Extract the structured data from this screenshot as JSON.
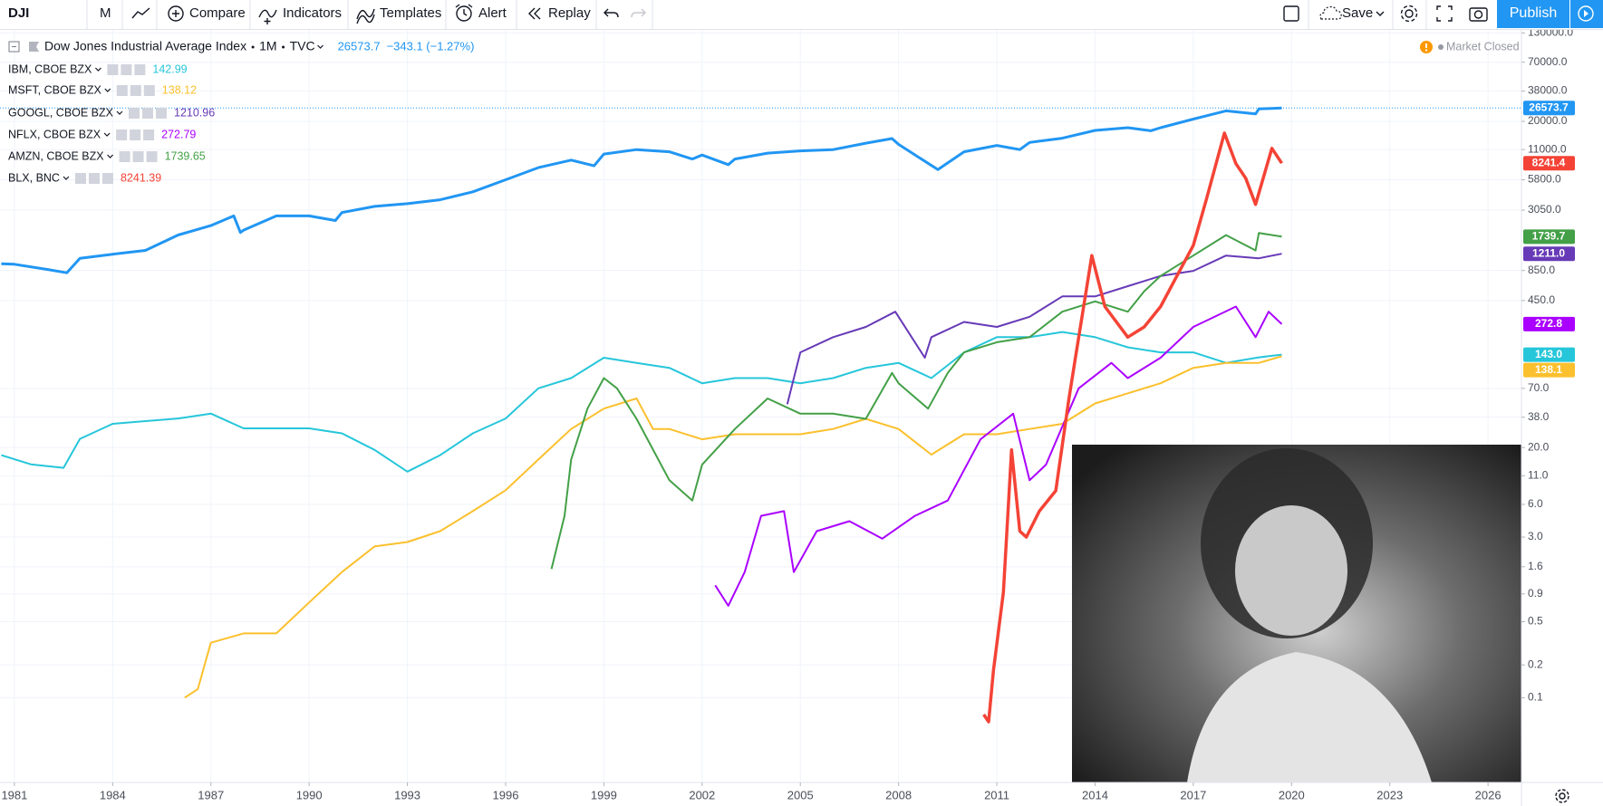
{
  "toolbar": {
    "symbol": "DJI",
    "interval": "M",
    "compare": "Compare",
    "indicators": "Indicators",
    "templates": "Templates",
    "alert": "Alert",
    "replay": "Replay",
    "save": "Save",
    "publish": "Publish"
  },
  "legend": {
    "interval": "1M",
    "source": "TVC",
    "change": "−343.1 (−1.27%)"
  },
  "status": "Market Closed",
  "chart_data": {
    "type": "line",
    "log_scale": true,
    "grid": true,
    "xlim": [
      1980.56,
      2027.02
    ],
    "ylim": [
      0.0166,
      141500
    ],
    "xticks": [
      1981,
      1984,
      1987,
      1990,
      1993,
      1996,
      1999,
      2002,
      2005,
      2008,
      2011,
      2014,
      2017,
      2020,
      2023,
      2026
    ],
    "yticks": [
      {
        "value": 130000,
        "label": "130000.0"
      },
      {
        "value": 70000,
        "label": "70000.0"
      },
      {
        "value": 38000,
        "label": "38000.0"
      },
      {
        "value": 20000,
        "label": "20000.0"
      },
      {
        "value": 11000,
        "label": "11000.0"
      },
      {
        "value": 5800,
        "label": "5800.0"
      },
      {
        "value": 3050,
        "label": "3050.0"
      },
      {
        "value": 850,
        "label": "850.0"
      },
      {
        "value": 450,
        "label": "450.0"
      },
      {
        "value": 70,
        "label": "70.0"
      },
      {
        "value": 38,
        "label": "38.0"
      },
      {
        "value": 20,
        "label": "20.0"
      },
      {
        "value": 11,
        "label": "11.0"
      },
      {
        "value": 6,
        "label": "6.0"
      },
      {
        "value": 3,
        "label": "3.0"
      },
      1.6,
      0.9,
      0.5,
      0.2,
      0.1
    ],
    "series": [
      {
        "name": "Dow Jones Industrial Average Index",
        "color": "#2196f3",
        "width": 3,
        "x": [
          1980.6,
          1981,
          1982,
          1982.6,
          1983,
          1984,
          1985,
          1986,
          1987,
          1987.7,
          1987.9,
          1988,
          1989,
          1990,
          1990.8,
          1991,
          1992,
          1993,
          1994,
          1995,
          1996,
          1997,
          1998,
          1998.7,
          1999,
          2000,
          2001,
          2001.7,
          2002,
          2002.8,
          2003,
          2004,
          2005,
          2006,
          2007,
          2007.8,
          2008,
          2009.2,
          2010,
          2011,
          2011.7,
          2012,
          2013,
          2014,
          2015,
          2015.7,
          2016,
          2017,
          2018,
          2018.9,
          2019,
          2019.7
        ],
        "values": [
          981,
          970,
          870,
          810,
          1100,
          1200,
          1300,
          1800,
          2200,
          2700,
          1900,
          2000,
          2700,
          2700,
          2450,
          2900,
          3300,
          3500,
          3800,
          4500,
          5800,
          7500,
          8800,
          7800,
          10000,
          11000,
          10500,
          9000,
          9800,
          8000,
          9000,
          10200,
          10700,
          11000,
          12600,
          13900,
          12300,
          7200,
          10500,
          12000,
          11000,
          12800,
          14000,
          16500,
          17500,
          16400,
          17500,
          21000,
          25000,
          23400,
          26000,
          26573.7
        ]
      },
      {
        "name": "IBM, CBOE BZX",
        "color": "#26c6da",
        "width": 2,
        "last_label": "143.0",
        "x": [
          1980.6,
          1981.5,
          1982.5,
          1983,
          1984,
          1985,
          1986,
          1987,
          1988,
          1989,
          1990,
          1991,
          1992,
          1993,
          1994,
          1995,
          1996,
          1997,
          1998,
          1999,
          2000,
          2001,
          2002,
          2003,
          2004,
          2005,
          2006,
          2007,
          2008,
          2009,
          2010,
          2011,
          2012,
          2013,
          2014,
          2015,
          2016,
          2017,
          2018,
          2019,
          2019.7
        ],
        "values": [
          17,
          14,
          13,
          24,
          33,
          35,
          37,
          41,
          30,
          30,
          30,
          27,
          19,
          12,
          17,
          27,
          37,
          70,
          87,
          134,
          120,
          108,
          78,
          87,
          87,
          78,
          87,
          108,
          120,
          87,
          150,
          207,
          207,
          231,
          207,
          167,
          150,
          150,
          120,
          135,
          142.99
        ]
      },
      {
        "name": "MSFT, CBOE BZX",
        "color": "#fbc02d",
        "width": 2,
        "last_label": "138.1",
        "x": [
          1986.2,
          1986.6,
          1987,
          1988,
          1989,
          1990,
          1991,
          1992,
          1993,
          1994,
          1995,
          1996,
          1997,
          1998,
          1999,
          2000,
          2000.5,
          2001,
          2002,
          2003,
          2004,
          2005,
          2006,
          2007,
          2008,
          2009,
          2010,
          2011,
          2012,
          2013,
          2014,
          2015,
          2016,
          2017,
          2018,
          2019,
          2019.7
        ],
        "values": [
          0.1,
          0.12,
          0.32,
          0.39,
          0.39,
          0.75,
          1.43,
          2.46,
          2.7,
          3.4,
          5.2,
          8.1,
          15.5,
          29.6,
          45.6,
          56.5,
          29.6,
          29.6,
          23.8,
          26.5,
          26.5,
          26.5,
          29.6,
          36.7,
          29.6,
          17.2,
          26.5,
          26.5,
          29.6,
          33,
          50.8,
          63,
          78,
          108,
          120,
          120,
          138.12
        ]
      },
      {
        "name": "GOOGL, CBOE BZX",
        "color": "#673ab7",
        "width": 2,
        "last_label": "1211.0",
        "x": [
          2004.6,
          2005,
          2006,
          2007,
          2007.9,
          2008.8,
          2009,
          2010,
          2011,
          2012,
          2013,
          2014,
          2015,
          2016,
          2017,
          2018,
          2019,
          2019.7
        ],
        "values": [
          50,
          150,
          207,
          257,
          355,
          134,
          207,
          286,
          257,
          319,
          491,
          491,
          610,
          757,
          843,
          1166,
          1100,
          1210.96
        ]
      },
      {
        "name": "NFLX, CBOE BZX",
        "color": "#aa00ff",
        "width": 2,
        "last_label": "272.8",
        "x": [
          2002.4,
          2002.8,
          2003.3,
          2003.8,
          2004.5,
          2004.8,
          2005.5,
          2006.5,
          2007.5,
          2008.5,
          2009.5,
          2010.5,
          2011.5,
          2012,
          2012.5,
          2013.5,
          2014.5,
          2015,
          2016,
          2017,
          2018.3,
          2018.9,
          2019.3,
          2019.7
        ],
        "values": [
          1.08,
          0.7,
          1.43,
          4.7,
          5.2,
          1.43,
          3.4,
          4.2,
          2.9,
          4.7,
          6.5,
          23.8,
          40.9,
          10,
          13.9,
          70,
          120,
          87,
          134,
          257,
          396,
          207,
          355,
          272.79
        ]
      },
      {
        "name": "AMZN, CBOE BZX",
        "color": "#43a047",
        "width": 2,
        "last_label": "1739.7",
        "x": [
          1997.4,
          1997.8,
          1998,
          1998.5,
          1999,
          1999.4,
          2000,
          2001,
          2001.7,
          2002,
          2003,
          2004,
          2005,
          2006,
          2007,
          2007.8,
          2008,
          2008.9,
          2009.5,
          2010,
          2011,
          2012,
          2013,
          2014,
          2015,
          2015.5,
          2016,
          2017,
          2018,
          2018.9,
          2019,
          2019.7
        ],
        "values": [
          1.53,
          4.7,
          15.5,
          45.6,
          87,
          70,
          36.7,
          10,
          6.5,
          13.9,
          29.6,
          56.5,
          40.9,
          40.9,
          36.7,
          97,
          78,
          45.6,
          97,
          150,
          186,
          207,
          355,
          442,
          355,
          547,
          757,
          1166,
          1798,
          1300,
          1880,
          1739.65
        ]
      },
      {
        "name": "BLX, BNC",
        "color": "#f44336",
        "width": 3.5,
        "last_label": "8241.4",
        "x": [
          2010.6,
          2010.75,
          2010.9,
          2011.2,
          2011.45,
          2011.7,
          2011.9,
          2012.3,
          2012.8,
          2013.2,
          2013.4,
          2013.9,
          2014.3,
          2015,
          2015.5,
          2016,
          2016.5,
          2017,
          2017.4,
          2017.95,
          2018.3,
          2018.6,
          2018.9,
          2019.4,
          2019.7
        ],
        "values": [
          0.07,
          0.06,
          0.18,
          0.93,
          19,
          3.4,
          3,
          5.2,
          8,
          56,
          134,
          1166,
          396,
          207,
          257,
          396,
          757,
          1448,
          3830,
          15630,
          8165,
          6000,
          3445,
          11300,
          8241.39
        ]
      }
    ]
  }
}
